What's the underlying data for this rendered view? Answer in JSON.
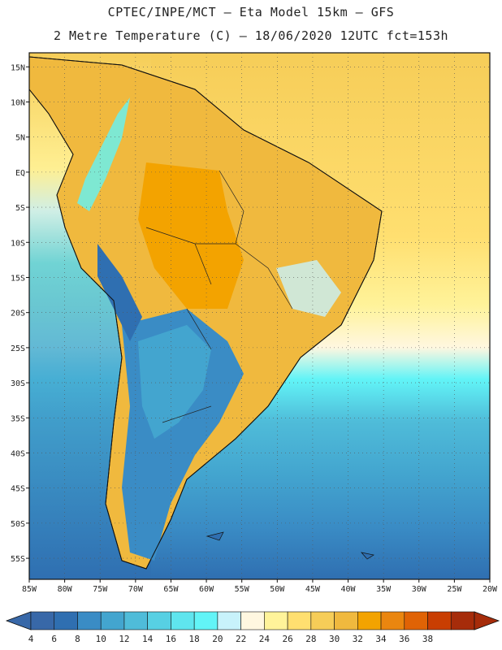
{
  "header": {
    "title_line1": "CPTEC/INPE/MCT –  Eta Model 15km – GFS",
    "title_line2": "2 Metre Temperature (C) – 18/06/2020 12UTC fct=153h"
  },
  "map": {
    "lat_labels": [
      "15N",
      "10N",
      "5N",
      "EQ",
      "5S",
      "10S",
      "15S",
      "20S",
      "25S",
      "30S",
      "35S",
      "40S",
      "45S",
      "50S",
      "55S"
    ],
    "lat_values": [
      15,
      10,
      5,
      0,
      -5,
      -10,
      -15,
      -20,
      -25,
      -30,
      -35,
      -40,
      -45,
      -50,
      -55
    ],
    "lon_labels": [
      "85W",
      "80W",
      "75W",
      "70W",
      "65W",
      "60W",
      "55W",
      "50W",
      "45W",
      "40W",
      "35W",
      "30W",
      "25W",
      "20W"
    ],
    "lon_values": [
      -85,
      -80,
      -75,
      -70,
      -65,
      -60,
      -55,
      -50,
      -45,
      -40,
      -35,
      -30,
      -25,
      -20
    ],
    "lat_range": [
      -58,
      17
    ],
    "lon_range": [
      -85,
      -20
    ]
  },
  "colorbar": {
    "labels": [
      "4",
      "6",
      "8",
      "10",
      "12",
      "14",
      "16",
      "18",
      "20",
      "22",
      "24",
      "26",
      "28",
      "30",
      "32",
      "34",
      "36",
      "38"
    ],
    "colors": [
      "#3868a8",
      "#2f6fb1",
      "#3a8cc5",
      "#43a5cf",
      "#4fbcd9",
      "#57d0e3",
      "#5fe5ee",
      "#62f4f7",
      "#c8f2fb",
      "#fff7e0",
      "#fff39a",
      "#ffdf70",
      "#f6cd58",
      "#f0b93e",
      "#f3a300",
      "#ea860f",
      "#e06305",
      "#c93e02",
      "#a62c0a"
    ],
    "under_color": "#3868a8",
    "over_color": "#a62c0a"
  }
}
